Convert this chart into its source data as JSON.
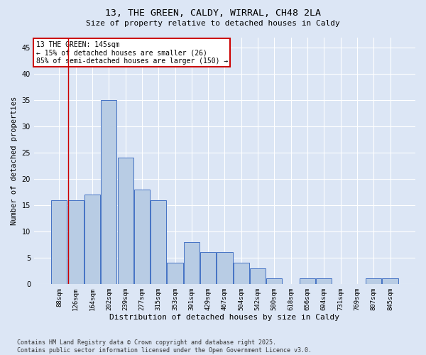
{
  "title": "13, THE GREEN, CALDY, WIRRAL, CH48 2LA",
  "subtitle": "Size of property relative to detached houses in Caldy",
  "xlabel": "Distribution of detached houses by size in Caldy",
  "ylabel": "Number of detached properties",
  "categories": [
    "88sqm",
    "126sqm",
    "164sqm",
    "202sqm",
    "239sqm",
    "277sqm",
    "315sqm",
    "353sqm",
    "391sqm",
    "429sqm",
    "467sqm",
    "504sqm",
    "542sqm",
    "580sqm",
    "618sqm",
    "656sqm",
    "694sqm",
    "731sqm",
    "769sqm",
    "807sqm",
    "845sqm"
  ],
  "values": [
    16,
    16,
    17,
    35,
    24,
    18,
    16,
    4,
    8,
    6,
    6,
    4,
    3,
    1,
    0,
    1,
    1,
    0,
    0,
    1,
    1
  ],
  "bar_color": "#b8cce4",
  "bar_edge_color": "#4472c4",
  "bg_color": "#dce6f5",
  "grid_color": "#ffffff",
  "annotation_text_line1": "13 THE GREEN: 145sqm",
  "annotation_text_line2": "← 15% of detached houses are smaller (26)",
  "annotation_text_line3": "85% of semi-detached houses are larger (150) →",
  "annotation_box_color": "#ffffff",
  "annotation_box_edge_color": "#cc0000",
  "vline_color": "#cc0000",
  "vline_x_index": 1,
  "footer_line1": "Contains HM Land Registry data © Crown copyright and database right 2025.",
  "footer_line2": "Contains public sector information licensed under the Open Government Licence v3.0.",
  "ylim": [
    0,
    47
  ],
  "yticks": [
    0,
    5,
    10,
    15,
    20,
    25,
    30,
    35,
    40,
    45
  ]
}
